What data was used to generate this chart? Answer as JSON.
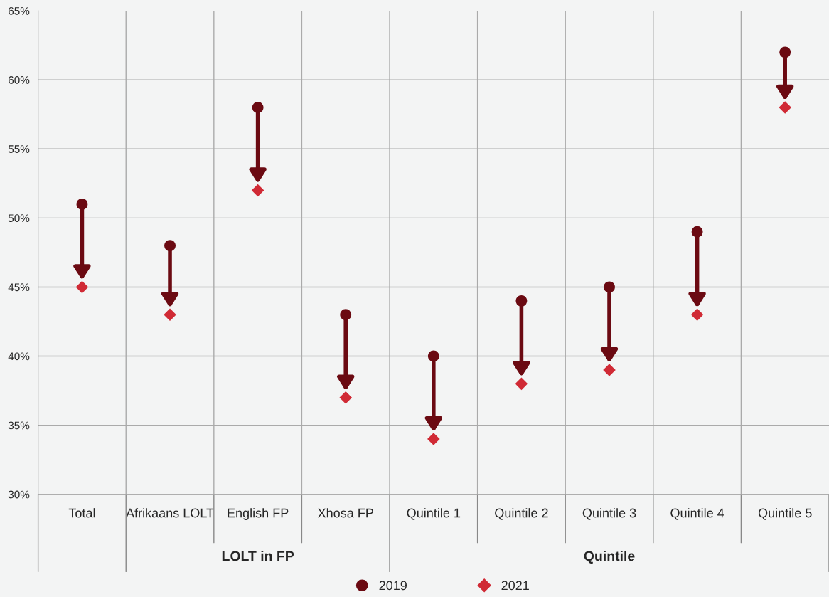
{
  "chart_data": {
    "type": "scatter",
    "categories": [
      "Total",
      "Afrikaans LOLT",
      "English FP",
      "Xhosa FP",
      "Quintile 1",
      "Quintile 2",
      "Quintile 3",
      "Quintile 4",
      "Quintile 5"
    ],
    "series": [
      {
        "name": "2019",
        "color": "#6b0a12",
        "marker": "circle",
        "values": [
          51,
          48,
          58,
          43,
          40,
          44,
          45,
          49,
          62
        ]
      },
      {
        "name": "2021",
        "color": "#d02a35",
        "marker": "diamond",
        "values": [
          45,
          43,
          52,
          37,
          34,
          38,
          39,
          43,
          58
        ]
      }
    ],
    "ylim": [
      30,
      65
    ],
    "yticks": [
      {
        "value": 30,
        "label": "30%"
      },
      {
        "value": 35,
        "label": "35%"
      },
      {
        "value": 40,
        "label": "40%"
      },
      {
        "value": 45,
        "label": "45%"
      },
      {
        "value": 50,
        "label": "50%"
      },
      {
        "value": 55,
        "label": "55%"
      },
      {
        "value": 60,
        "label": "60%"
      },
      {
        "value": 65,
        "label": "65%"
      }
    ],
    "grid": true,
    "legend": "bottom",
    "annotations": [
      "LOLT in FP",
      "Quintile"
    ]
  }
}
